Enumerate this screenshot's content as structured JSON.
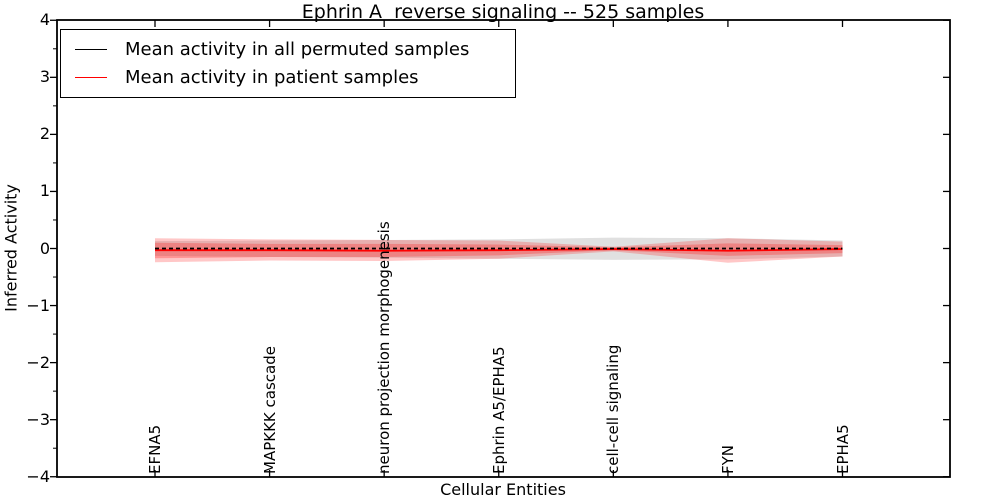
{
  "figure": {
    "title": "Ephrin A  reverse signaling -- 525 samples",
    "background_color": "#ffffff",
    "frame_color": "#000000"
  },
  "legend": {
    "position": "upper left",
    "items": [
      {
        "label": "Mean activity in all permuted samples",
        "color": "#000000"
      },
      {
        "label": "Mean activity in patient samples",
        "color": "#ff0000"
      }
    ]
  },
  "chart_data": {
    "type": "line",
    "title": "Ephrin A  reverse signaling -- 525 samples",
    "xlabel": "Cellular Entities",
    "ylabel": "Inferred Activity",
    "ylim": [
      -4,
      4
    ],
    "yticks": [
      -4,
      -3,
      -2,
      -1,
      0,
      1,
      2,
      3,
      4
    ],
    "ytick_labels": [
      "−4",
      "−3",
      "−2",
      "−1",
      "0",
      "1",
      "2",
      "3",
      "4"
    ],
    "minor_ytick_step": 0.5,
    "grid": false,
    "legend_position": "upper left",
    "categories": [
      "EFNA5",
      "MAPKKK cascade",
      "neuron projection morphogenesis",
      "Ephrin A5/EPHA5",
      "cell-cell signaling",
      "FYN",
      "EPHA5"
    ],
    "series": [
      {
        "name": "Mean activity in all permuted samples",
        "color": "#000000",
        "line_style": "dashed",
        "values": [
          0,
          0,
          0,
          0,
          0,
          0,
          0
        ]
      },
      {
        "name": "Mean activity in patient samples",
        "color": "#ff0000",
        "line_style": "solid",
        "values": [
          -0.03,
          -0.03,
          -0.04,
          -0.03,
          -0.01,
          -0.04,
          -0.01
        ]
      }
    ],
    "bands": [
      {
        "name": "permuted-samples-std-band",
        "color": "#000000",
        "opacity": 0.12,
        "upper": [
          0.13,
          0.14,
          0.15,
          0.16,
          0.19,
          0.18,
          0.14
        ],
        "lower": [
          -0.13,
          -0.15,
          -0.16,
          -0.18,
          -0.2,
          -0.19,
          -0.14
        ]
      },
      {
        "name": "patient-samples-outer-band",
        "color": "#ff0000",
        "opacity": 0.22,
        "upper": [
          0.18,
          0.16,
          0.15,
          0.14,
          0.03,
          0.18,
          0.12
        ],
        "lower": [
          -0.24,
          -0.21,
          -0.22,
          -0.18,
          -0.05,
          -0.25,
          -0.14
        ]
      },
      {
        "name": "patient-samples-inner-band",
        "color": "#ff0000",
        "opacity": 0.25,
        "upper": [
          0.1,
          0.08,
          0.08,
          0.07,
          0.02,
          0.09,
          0.06
        ],
        "lower": [
          -0.17,
          -0.15,
          -0.15,
          -0.12,
          -0.03,
          -0.13,
          -0.08
        ]
      }
    ]
  }
}
